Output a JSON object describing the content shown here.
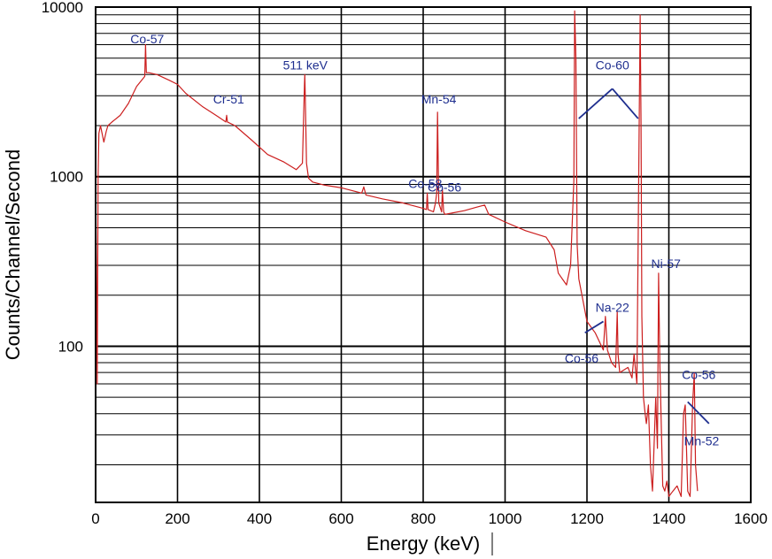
{
  "chart_data": {
    "type": "line",
    "title": "",
    "xlabel": "Energy (keV)",
    "ylabel": "Counts/Channel/Second",
    "xlim": [
      0,
      1600
    ],
    "ylim": [
      12,
      10000
    ],
    "y_scale": "log",
    "grid": true,
    "series_color": "#cc1f1f",
    "annotation_color": "#1f2f8f",
    "x_ticks": [
      0,
      200,
      400,
      600,
      800,
      1000,
      1200,
      1400,
      1600
    ],
    "x_tick_labels": [
      "0",
      "200",
      "400",
      "600",
      "800",
      "1000",
      "1200",
      "1400",
      "1600"
    ],
    "y_ticks": [
      100,
      1000,
      10000
    ],
    "y_tick_labels": [
      "100",
      "1000",
      "10000"
    ],
    "series": [
      {
        "name": "",
        "x": [
          0,
          2,
          4,
          6,
          8,
          12,
          20,
          26,
          30,
          40,
          60,
          80,
          100,
          120,
          122,
          124,
          130,
          150,
          180,
          200,
          220,
          260,
          300,
          318,
          320,
          322,
          340,
          380,
          420,
          460,
          490,
          505,
          510,
          511,
          512,
          515,
          520,
          530,
          560,
          600,
          650,
          655,
          660,
          700,
          750,
          800,
          808,
          810,
          812,
          825,
          830,
          833,
          835,
          838,
          845,
          847,
          850,
          853,
          870,
          900,
          930,
          950,
          960,
          1000,
          1050,
          1100,
          1120,
          1130,
          1150,
          1160,
          1168,
          1170,
          1173,
          1176,
          1180,
          1200,
          1220,
          1240,
          1245,
          1250,
          1260,
          1270,
          1274,
          1276,
          1280,
          1300,
          1310,
          1315,
          1318,
          1322,
          1326,
          1330,
          1332,
          1334,
          1338,
          1342,
          1345,
          1350,
          1355,
          1360,
          1368,
          1372,
          1375,
          1378,
          1382,
          1385,
          1390,
          1395,
          1400,
          1410,
          1420,
          1430,
          1436,
          1440,
          1446,
          1452,
          1458,
          1462,
          1465,
          1470
        ],
        "y": [
          1000,
          300,
          60,
          1000,
          1800,
          2000,
          1600,
          1850,
          2000,
          2100,
          2300,
          2700,
          3400,
          3900,
          6000,
          4100,
          4100,
          4000,
          3700,
          3500,
          3100,
          2600,
          2250,
          2100,
          2300,
          2100,
          2000,
          1650,
          1350,
          1220,
          1100,
          1200,
          3500,
          4000,
          3000,
          1200,
          980,
          930,
          890,
          860,
          800,
          870,
          780,
          740,
          700,
          650,
          640,
          800,
          640,
          620,
          700,
          800,
          2400,
          700,
          620,
          840,
          620,
          600,
          610,
          630,
          660,
          680,
          600,
          540,
          480,
          440,
          370,
          270,
          230,
          300,
          950,
          9500,
          5000,
          400,
          250,
          140,
          120,
          95,
          150,
          95,
          80,
          75,
          160,
          90,
          70,
          75,
          65,
          90,
          75,
          60,
          800,
          9000,
          2000,
          150,
          50,
          40,
          35,
          45,
          20,
          14,
          50,
          25,
          270,
          80,
          30,
          15,
          14,
          16,
          13,
          14,
          15,
          13,
          40,
          45,
          14,
          13,
          45,
          70,
          20,
          14
        ]
      }
    ],
    "annotations": [
      {
        "text": "Co-57",
        "x": 126,
        "y": 6100
      },
      {
        "text": "Cr-51",
        "x": 325,
        "y": 2700
      },
      {
        "text": "511 keV",
        "x": 512,
        "y": 4300
      },
      {
        "text": "Mn-54",
        "x": 838,
        "y": 2700
      },
      {
        "text": "Co-58",
        "x": 805,
        "y": 860
      },
      {
        "text": "Co-56",
        "x": 852,
        "y": 820
      },
      {
        "text": "Co-60",
        "x": 1262,
        "y": 4300
      },
      {
        "text": "Ni-57",
        "x": 1393,
        "y": 290
      },
      {
        "text": "Na-22",
        "x": 1262,
        "y": 160
      },
      {
        "text": "Co-56",
        "x": 1187,
        "y": 80
      },
      {
        "text": "Co-56",
        "x": 1473,
        "y": 64
      },
      {
        "text": "Mn-52",
        "x": 1480,
        "y": 26
      }
    ],
    "pointers": [
      {
        "from": [
          1180,
          2200
        ],
        "to": [
          1262,
          3300
        ]
      },
      {
        "from": [
          1262,
          3300
        ],
        "to": [
          1325,
          2200
        ]
      },
      {
        "from": [
          1195,
          120
        ],
        "to": [
          1240,
          140
        ]
      },
      {
        "from": [
          1446,
          47
        ],
        "to": [
          1498,
          35
        ]
      }
    ]
  }
}
